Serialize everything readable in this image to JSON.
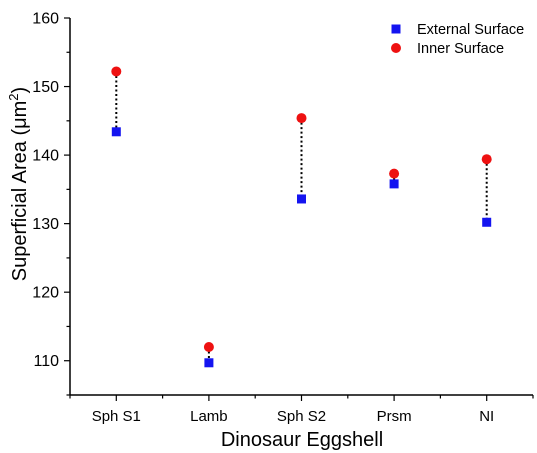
{
  "chart_data": {
    "type": "scatter",
    "categories": [
      "Sph S1",
      "Lamb",
      "Sph S2",
      "Prsm",
      "NI"
    ],
    "series": [
      {
        "name": "External Surface",
        "marker": "square",
        "color": "#1414f0",
        "values": [
          143.4,
          109.7,
          133.6,
          135.8,
          130.2
        ]
      },
      {
        "name": "Inner Surface",
        "marker": "circle",
        "color": "#ee1111",
        "values": [
          152.2,
          112.0,
          145.4,
          137.3,
          139.4
        ]
      }
    ],
    "connectors": "dotted vertical lines between inner and external values",
    "xlabel": "Dinosaur Eggshell",
    "ylabel_prefix": "Superficial Area (",
    "ylabel_unit": "μm",
    "ylabel_exp": "2",
    "ylabel_suffix": ")",
    "ylim": [
      105,
      160
    ],
    "yticks": [
      110,
      120,
      130,
      140,
      150,
      160
    ],
    "grid": false,
    "legend_position": "top-right"
  }
}
